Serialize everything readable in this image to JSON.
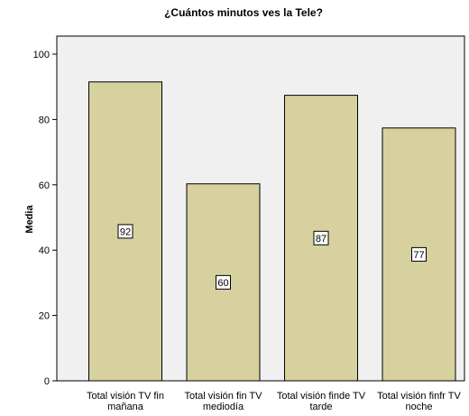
{
  "chart_data": {
    "type": "bar",
    "title": "¿Cuántos minutos ves la Tele?",
    "xlabel": "",
    "ylabel": "Media",
    "ylim": [
      0,
      100
    ],
    "yticks": [
      0,
      20,
      40,
      60,
      80,
      100
    ],
    "grid": false,
    "categories": [
      [
        "Total visión TV fin",
        "mañana"
      ],
      [
        "Total visión fin TV",
        "mediodía"
      ],
      [
        "Total visión finde TV",
        "tarde"
      ],
      [
        "Total visión finfr TV",
        "noche"
      ]
    ],
    "values": [
      91.5,
      60.3,
      87.4,
      77.4
    ],
    "data_labels": [
      "92",
      "60",
      "87",
      "77"
    ],
    "colors": {
      "bar_fill": "#d6d19f",
      "bar_stroke": "#000000",
      "plot_bg": "#f0f0f0"
    }
  }
}
